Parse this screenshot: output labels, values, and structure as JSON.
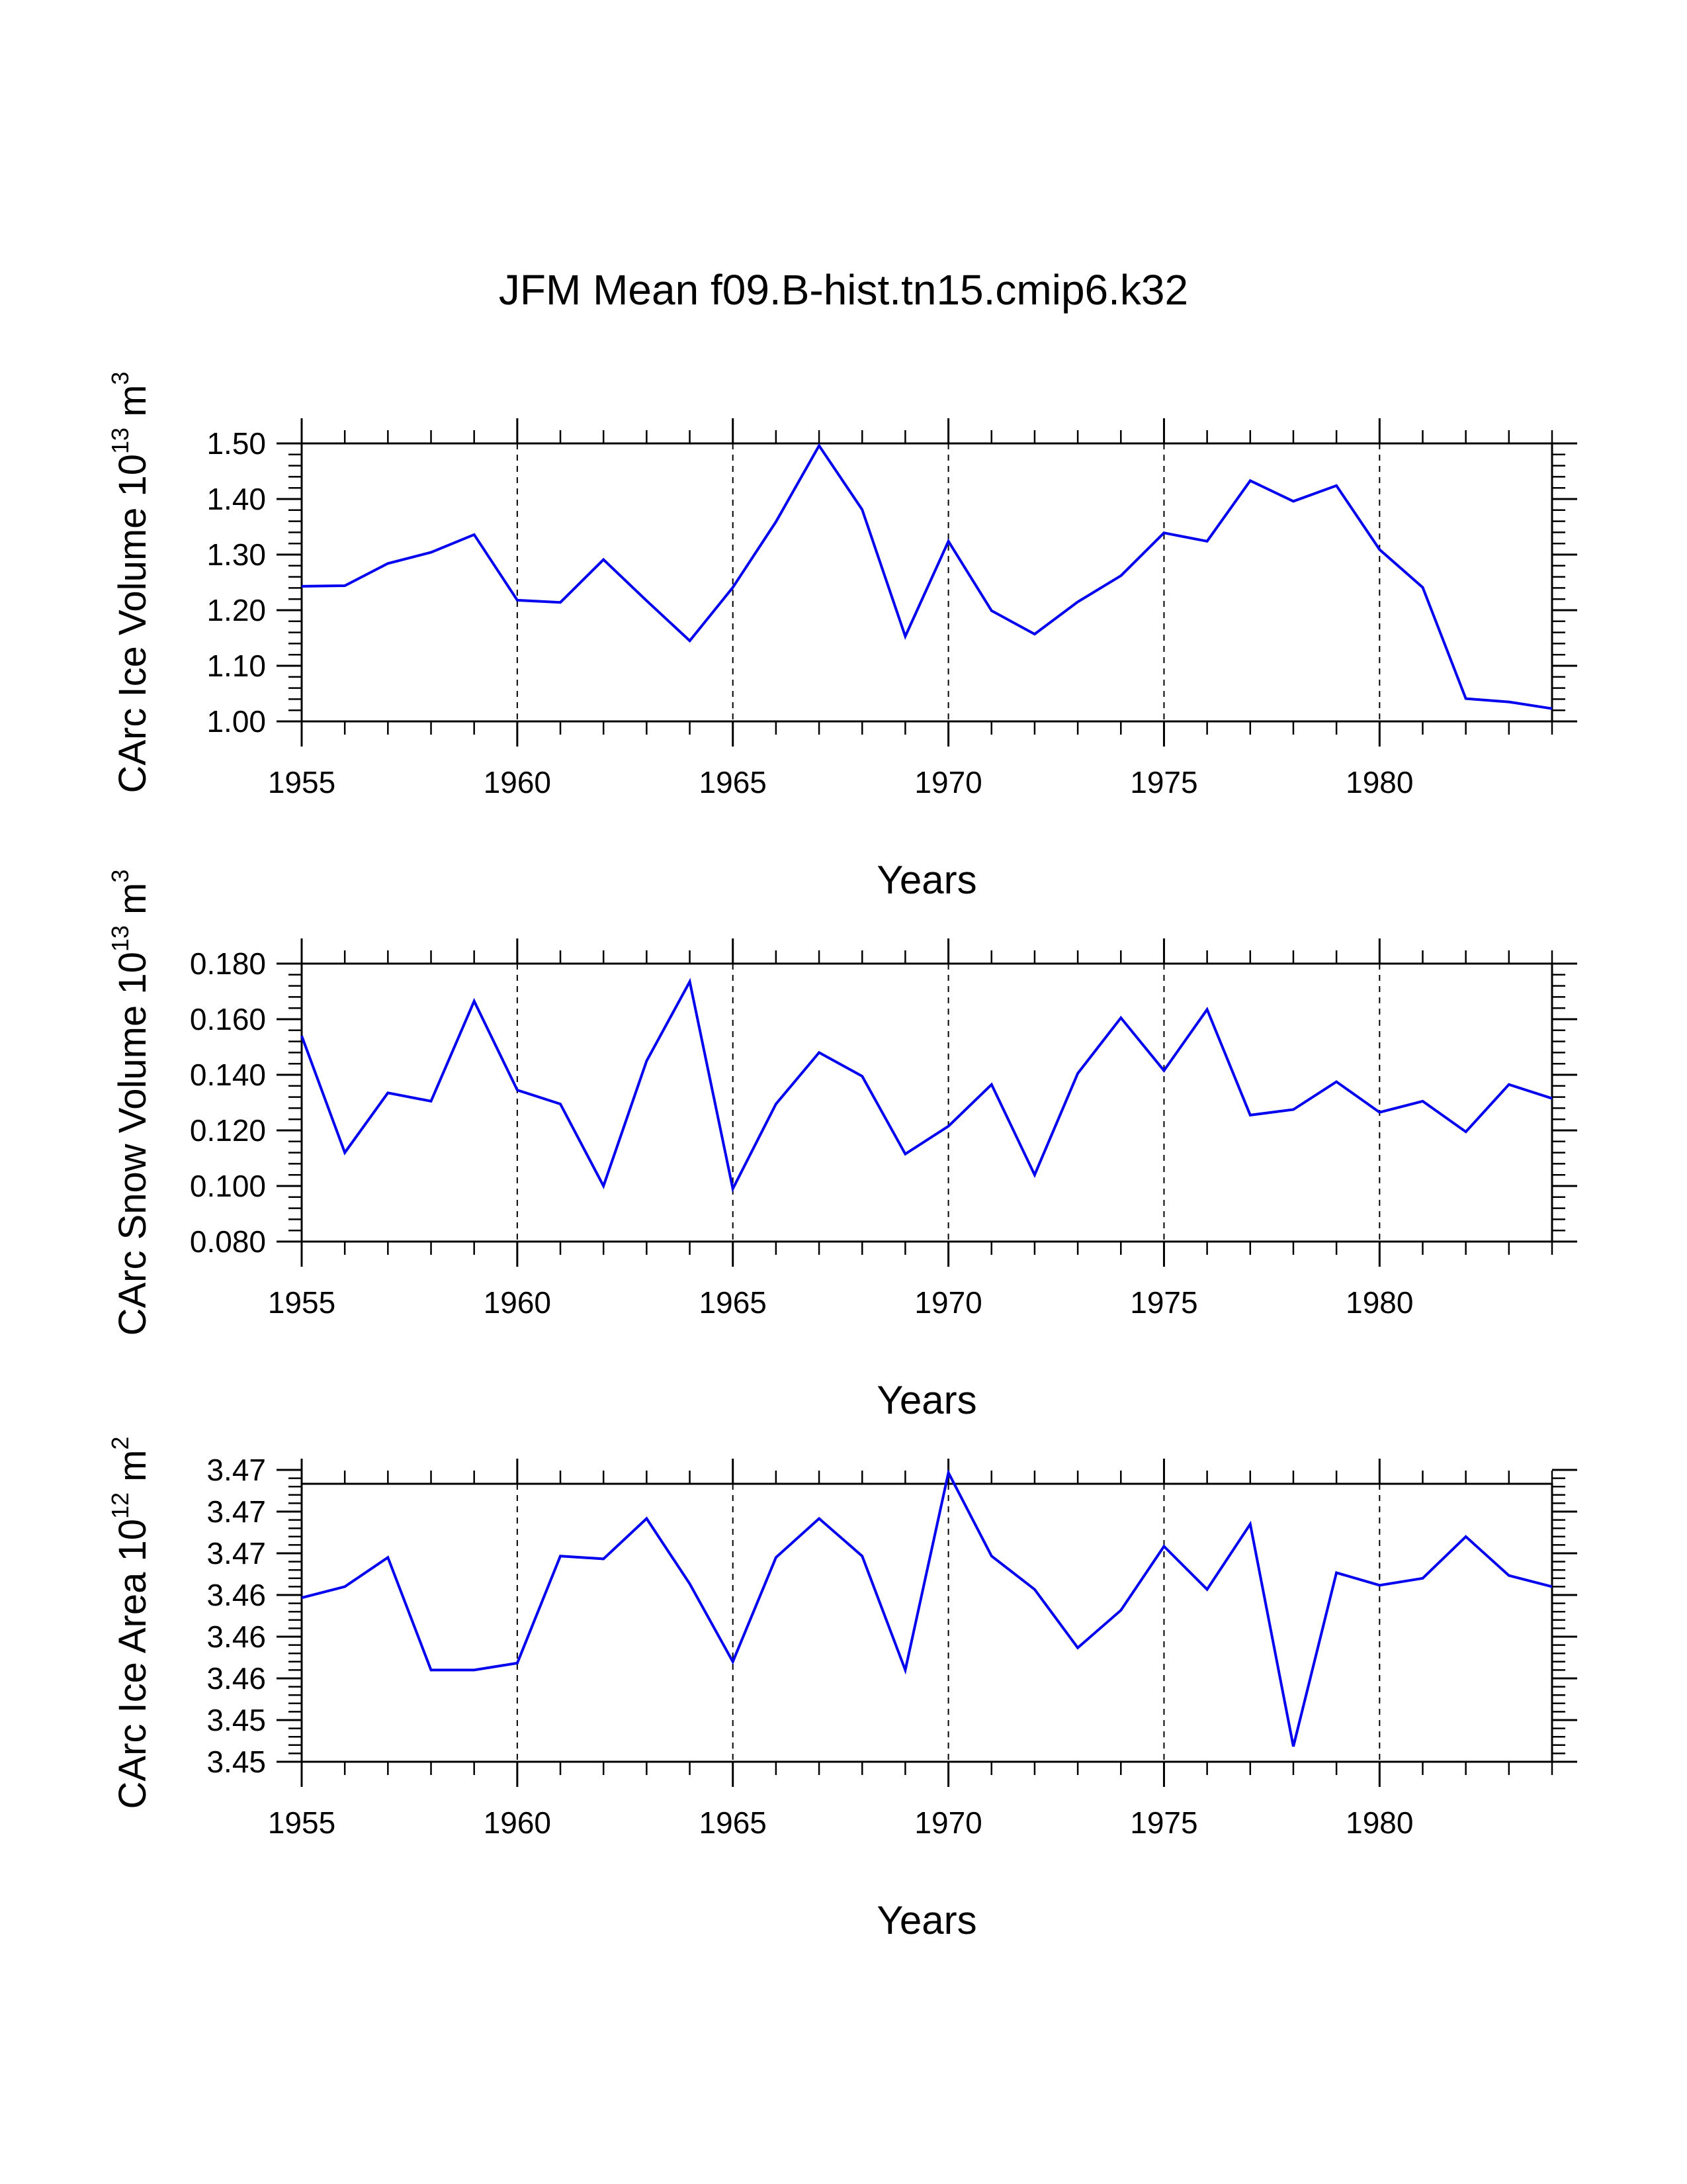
{
  "figure_title": "JFM Mean f09.B-hist.tn15.cmip6.k32",
  "chart_data": [
    {
      "type": "line",
      "title": "JFM Mean f09.B-hist.tn15.cmip6.k32",
      "ylabel_main": "CArc Ice Volume 10",
      "ylabel_exp": "13",
      "ylabel_unit": " m",
      "ylabel_unit_exp": "3",
      "xlabel": "Years",
      "xlim": [
        1955,
        1984
      ],
      "ylim": [
        1.0,
        1.5
      ],
      "xticks": [
        1955,
        1960,
        1965,
        1970,
        1975,
        1980
      ],
      "xtick_labels": [
        "1955",
        "1960",
        "1965",
        "1970",
        "1975",
        "1980"
      ],
      "yticks": [
        1.0,
        1.1,
        1.2,
        1.3,
        1.4,
        1.5
      ],
      "ytick_labels": [
        "1.00",
        "1.10",
        "1.20",
        "1.30",
        "1.40",
        "1.50"
      ],
      "grid": "dashed vertical lines at major x ticks",
      "series": [
        {
          "name": "CArc Ice Volume",
          "color": "#0000ee",
          "x": [
            1955,
            1956,
            1957,
            1958,
            1959,
            1960,
            1961,
            1962,
            1963,
            1964,
            1965,
            1966,
            1967,
            1968,
            1969,
            1970,
            1971,
            1972,
            1973,
            1974,
            1975,
            1976,
            1977,
            1978,
            1979,
            1980,
            1981,
            1982,
            1983,
            1984
          ],
          "values": [
            1.243,
            1.244,
            1.284,
            1.304,
            1.336,
            1.218,
            1.214,
            1.291,
            1.217,
            1.145,
            1.241,
            1.359,
            1.496,
            1.381,
            1.153,
            1.324,
            1.199,
            1.157,
            1.215,
            1.262,
            1.339,
            1.324,
            1.433,
            1.396,
            1.424,
            1.309,
            1.241,
            1.041,
            1.035,
            1.023
          ]
        }
      ]
    },
    {
      "type": "line",
      "ylabel_main": "CArc Snow Volume 10",
      "ylabel_exp": "13",
      "ylabel_unit": " m",
      "ylabel_unit_exp": "3",
      "xlabel": "Years",
      "xlim": [
        1955,
        1984
      ],
      "ylim": [
        0.08,
        0.18
      ],
      "xticks": [
        1955,
        1960,
        1965,
        1970,
        1975,
        1980
      ],
      "xtick_labels": [
        "1955",
        "1960",
        "1965",
        "1970",
        "1975",
        "1980"
      ],
      "yticks": [
        0.08,
        0.1,
        0.12,
        0.14,
        0.16,
        0.18
      ],
      "ytick_labels": [
        "0.080",
        "0.100",
        "0.120",
        "0.140",
        "0.160",
        "0.180"
      ],
      "grid": "dashed vertical lines at major x ticks",
      "series": [
        {
          "name": "CArc Snow Volume",
          "color": "#0000ee",
          "x": [
            1955,
            1956,
            1957,
            1958,
            1959,
            1960,
            1961,
            1962,
            1963,
            1964,
            1965,
            1966,
            1967,
            1968,
            1969,
            1970,
            1971,
            1972,
            1973,
            1974,
            1975,
            1976,
            1977,
            1978,
            1979,
            1980,
            1981,
            1982,
            1983,
            1984
          ],
          "values": [
            0.154,
            0.112,
            0.1335,
            0.1305,
            0.1665,
            0.1345,
            0.1295,
            0.1,
            0.145,
            0.1735,
            0.099,
            0.1295,
            0.148,
            0.1395,
            0.1115,
            0.1215,
            0.1365,
            0.104,
            0.1405,
            0.1605,
            0.1415,
            0.1635,
            0.1255,
            0.1275,
            0.1375,
            0.1265,
            0.1305,
            0.1195,
            0.1365,
            0.1315
          ]
        }
      ]
    },
    {
      "type": "line",
      "ylabel_main": "CArc Ice Area 10",
      "ylabel_exp": "12",
      "ylabel_unit": " m",
      "ylabel_unit_exp": "2",
      "xlabel": "Years",
      "xlim": [
        1955,
        1984
      ],
      "ylim": [
        3.45,
        3.47
      ],
      "xticks": [
        1955,
        1960,
        1965,
        1970,
        1975,
        1980
      ],
      "xtick_labels": [
        "1955",
        "1960",
        "1965",
        "1970",
        "1975",
        "1980"
      ],
      "yticks": [
        3.45,
        3.453,
        3.456,
        3.459,
        3.462,
        3.465,
        3.468,
        3.471
      ],
      "ytick_labels": [
        "3.45",
        "3.45",
        "3.46",
        "3.46",
        "3.46",
        "3.47",
        "3.47",
        "3.47"
      ],
      "grid": "dashed vertical lines at major x ticks",
      "series": [
        {
          "name": "CArc Ice Area",
          "color": "#0000ee",
          "x": [
            1955,
            1956,
            1957,
            1958,
            1959,
            1960,
            1961,
            1962,
            1963,
            1964,
            1965,
            1966,
            1967,
            1968,
            1969,
            1970,
            1971,
            1972,
            1973,
            1974,
            1975,
            1976,
            1977,
            1978,
            1979,
            1980,
            1981,
            1982,
            1983,
            1984
          ],
          "values": [
            3.4618,
            3.4626,
            3.4647,
            3.4566,
            3.4566,
            3.4571,
            3.4648,
            3.4646,
            3.4675,
            3.4628,
            3.4572,
            3.4647,
            3.4675,
            3.4648,
            3.4566,
            3.4708,
            3.4648,
            3.4624,
            3.4582,
            3.4609,
            3.4655,
            3.4624,
            3.4671,
            3.4511,
            3.4636,
            3.4627,
            3.4632,
            3.4662,
            3.4634,
            3.4626
          ]
        }
      ]
    }
  ]
}
